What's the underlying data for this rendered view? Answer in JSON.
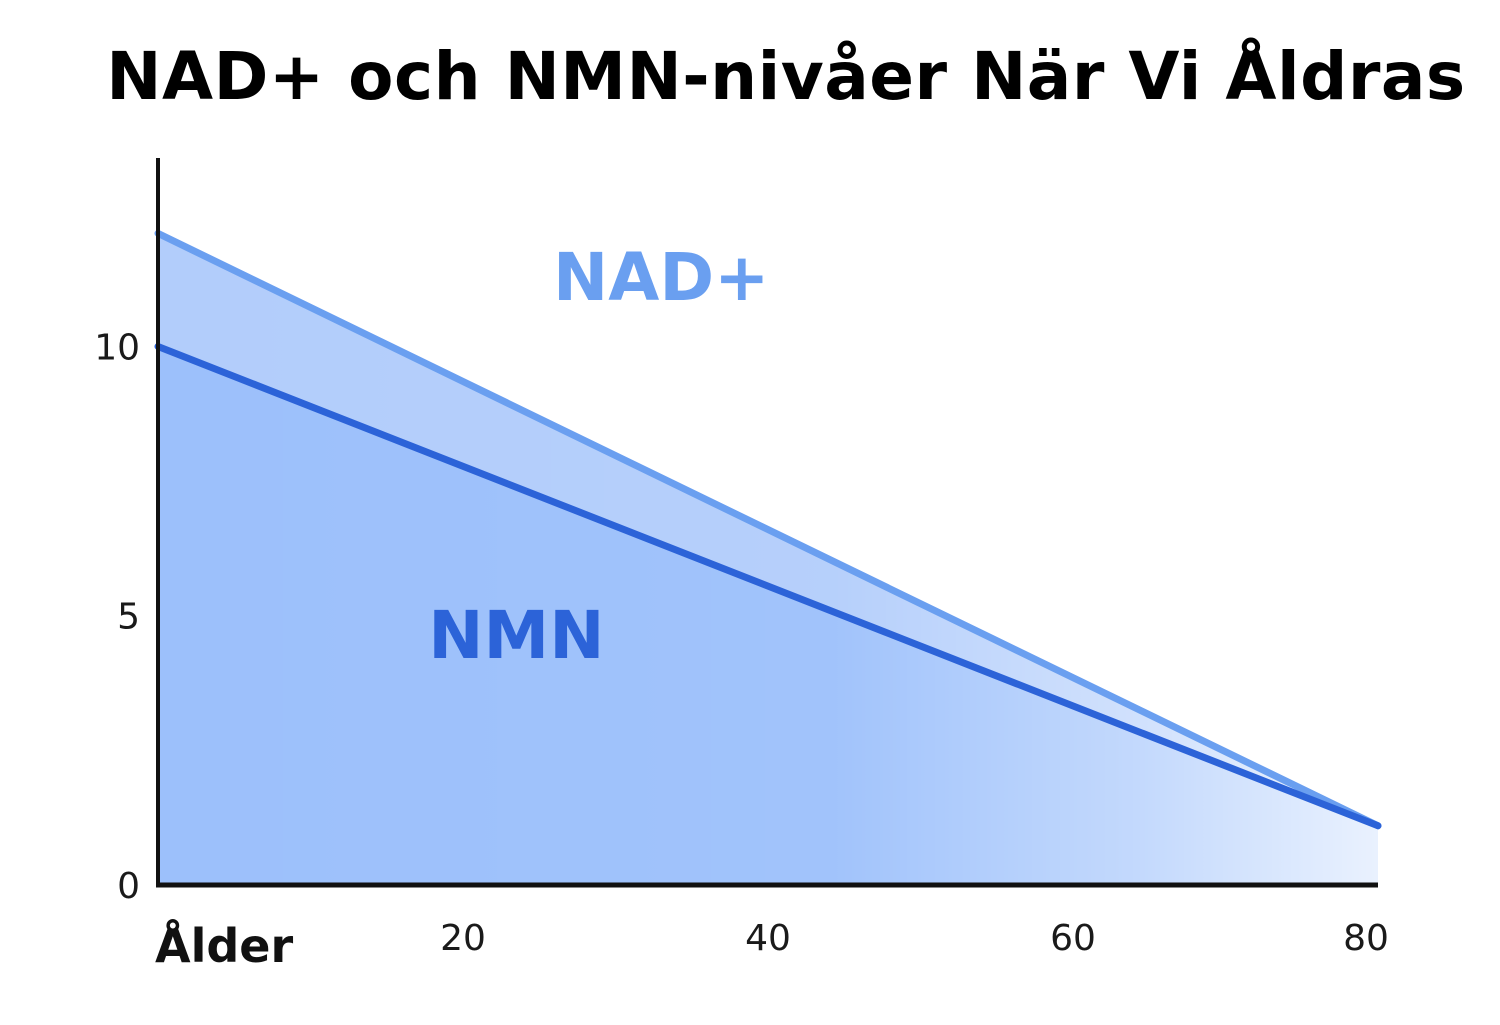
{
  "chart_data": {
    "type": "area",
    "title": "NAD+ och NMN-nivåer När Vi Åldras",
    "xlabel": "Ålder",
    "ylabel": "",
    "x": [
      0,
      80
    ],
    "x_ticks": [
      "20",
      "40",
      "60",
      "80"
    ],
    "x_tick_values": [
      20,
      40,
      60,
      80
    ],
    "y_ticks": [
      "0",
      "5",
      "10"
    ],
    "y_tick_values": [
      0,
      5,
      10
    ],
    "xlim": [
      0,
      80
    ],
    "ylim": [
      0,
      13.5
    ],
    "grid": false,
    "legend": "none",
    "series": [
      {
        "name": "NAD+",
        "values": [
          12.1,
          1.1
        ],
        "color": "#6a9ff0",
        "fill": "#b2cdfb"
      },
      {
        "name": "NMN",
        "values": [
          10.0,
          1.1
        ],
        "color": "#2c63d8",
        "fill": "#9cc0fb"
      }
    ]
  }
}
